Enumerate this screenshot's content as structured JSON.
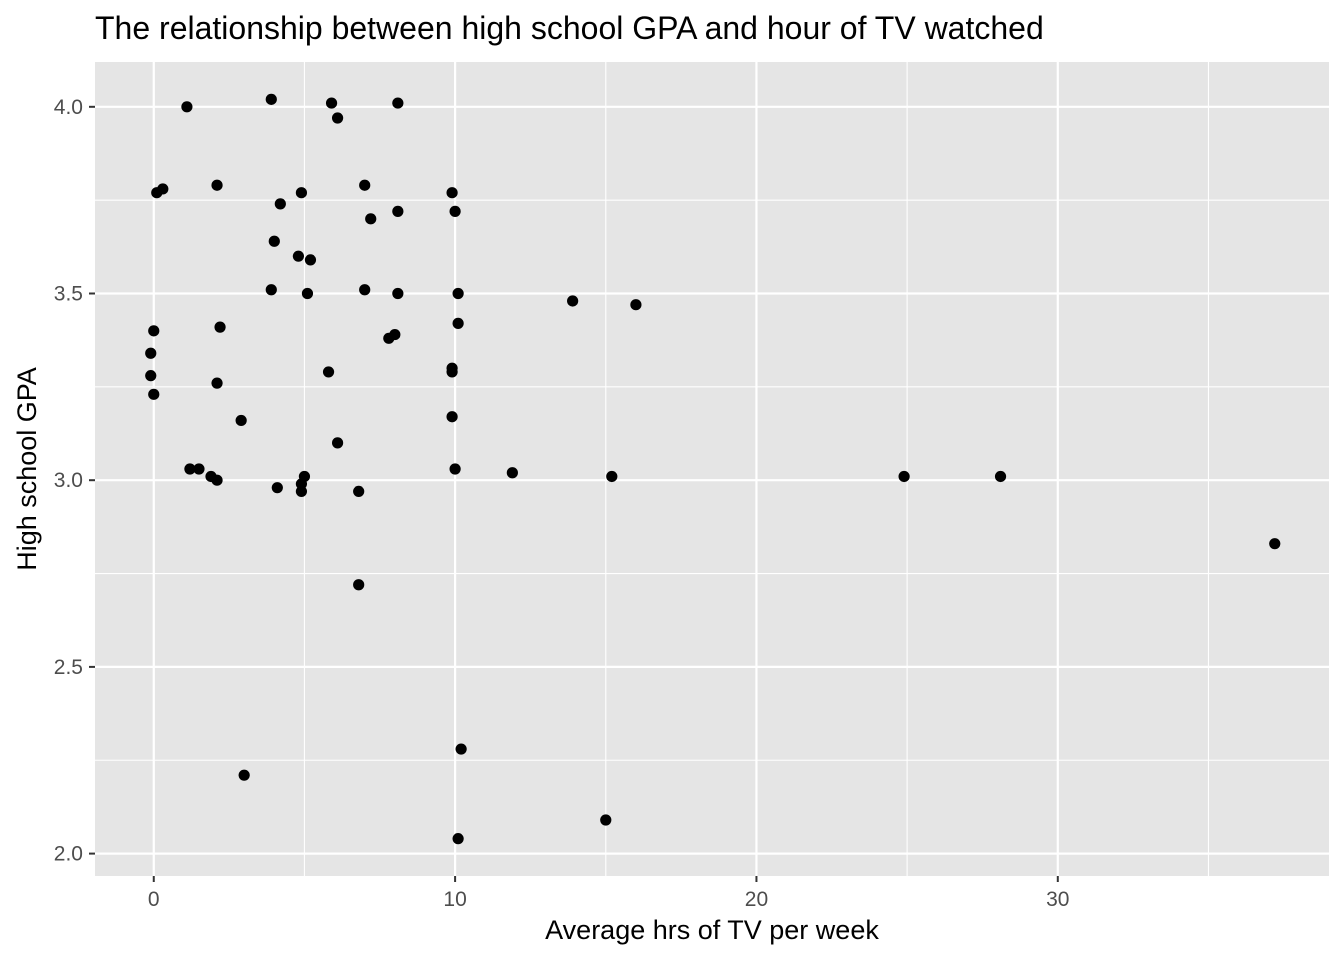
{
  "chart_data": {
    "type": "scatter",
    "title": "The relationship between high school GPA and hour of TV watched",
    "xlabel": "Average hrs of TV per week",
    "ylabel": "High school GPA",
    "xlim": [
      -1.95,
      39.0
    ],
    "ylim": [
      1.94,
      4.12
    ],
    "x_ticks": [
      0,
      10,
      20,
      30
    ],
    "x_tick_labels": [
      "0",
      "10",
      "20",
      "30"
    ],
    "y_ticks": [
      2.0,
      2.5,
      3.0,
      3.5,
      4.0
    ],
    "y_tick_labels": [
      "2.0",
      "2.5",
      "3.0",
      "3.5",
      "4.0"
    ],
    "grid": true,
    "colors": {
      "panel": "#e5e5e5",
      "grid": "#ffffff",
      "point": "#000000",
      "tick_text": "#4d4d4d"
    },
    "points": [
      {
        "x": 1.1,
        "y": 4.0
      },
      {
        "x": 3.9,
        "y": 4.02
      },
      {
        "x": 5.9,
        "y": 4.01
      },
      {
        "x": 8.1,
        "y": 4.01
      },
      {
        "x": 6.1,
        "y": 3.97
      },
      {
        "x": 0.1,
        "y": 3.77
      },
      {
        "x": 0.3,
        "y": 3.78
      },
      {
        "x": 2.1,
        "y": 3.79
      },
      {
        "x": 7.0,
        "y": 3.79
      },
      {
        "x": 4.9,
        "y": 3.77
      },
      {
        "x": 9.9,
        "y": 3.77
      },
      {
        "x": 4.2,
        "y": 3.74
      },
      {
        "x": 8.1,
        "y": 3.72
      },
      {
        "x": 10.0,
        "y": 3.72
      },
      {
        "x": 7.2,
        "y": 3.7
      },
      {
        "x": 4.0,
        "y": 3.64
      },
      {
        "x": 4.8,
        "y": 3.6
      },
      {
        "x": 5.2,
        "y": 3.59
      },
      {
        "x": 3.9,
        "y": 3.51
      },
      {
        "x": 7.0,
        "y": 3.51
      },
      {
        "x": 5.1,
        "y": 3.5
      },
      {
        "x": 8.1,
        "y": 3.5
      },
      {
        "x": 10.1,
        "y": 3.5
      },
      {
        "x": 13.9,
        "y": 3.48
      },
      {
        "x": 16.0,
        "y": 3.47
      },
      {
        "x": 2.2,
        "y": 3.41
      },
      {
        "x": 10.1,
        "y": 3.42
      },
      {
        "x": 0.0,
        "y": 3.4
      },
      {
        "x": 8.0,
        "y": 3.39
      },
      {
        "x": 7.8,
        "y": 3.38
      },
      {
        "x": -0.1,
        "y": 3.34
      },
      {
        "x": 9.9,
        "y": 3.3
      },
      {
        "x": 9.9,
        "y": 3.29
      },
      {
        "x": 5.8,
        "y": 3.29
      },
      {
        "x": -0.1,
        "y": 3.28
      },
      {
        "x": 2.1,
        "y": 3.26
      },
      {
        "x": 0.0,
        "y": 3.23
      },
      {
        "x": 9.9,
        "y": 3.17
      },
      {
        "x": 2.9,
        "y": 3.16
      },
      {
        "x": 6.1,
        "y": 3.1
      },
      {
        "x": 1.2,
        "y": 3.03
      },
      {
        "x": 1.5,
        "y": 3.03
      },
      {
        "x": 10.0,
        "y": 3.03
      },
      {
        "x": 11.9,
        "y": 3.02
      },
      {
        "x": 1.9,
        "y": 3.01
      },
      {
        "x": 5.0,
        "y": 3.01
      },
      {
        "x": 15.2,
        "y": 3.01
      },
      {
        "x": 24.9,
        "y": 3.01
      },
      {
        "x": 28.1,
        "y": 3.01
      },
      {
        "x": 2.1,
        "y": 3.0
      },
      {
        "x": 4.9,
        "y": 2.99
      },
      {
        "x": 4.1,
        "y": 2.98
      },
      {
        "x": 4.9,
        "y": 2.97
      },
      {
        "x": 6.8,
        "y": 2.97
      },
      {
        "x": 37.2,
        "y": 2.83
      },
      {
        "x": 6.8,
        "y": 2.72
      },
      {
        "x": 10.2,
        "y": 2.28
      },
      {
        "x": 3.0,
        "y": 2.21
      },
      {
        "x": 15.0,
        "y": 2.09
      },
      {
        "x": 10.1,
        "y": 2.04
      }
    ]
  }
}
